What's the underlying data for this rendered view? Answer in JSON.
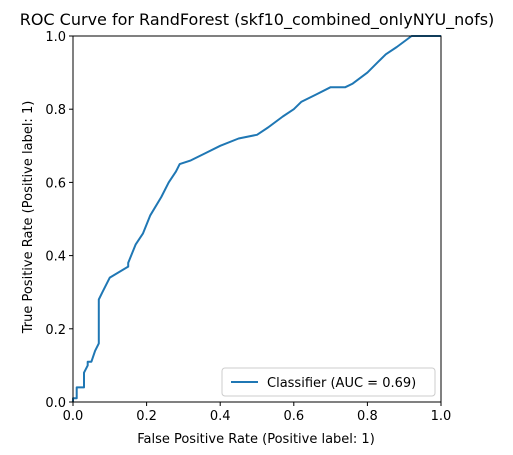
{
  "chart_data": {
    "type": "line",
    "title": "ROC Curve for RandForest (skf10_combined_onlyNYU_nofs)",
    "xlabel": "False Positive Rate (Positive label: 1)",
    "ylabel": "True Positive Rate (Positive label: 1)",
    "xlim": [
      0,
      1
    ],
    "ylim": [
      0,
      1
    ],
    "xticks": [
      "0.0",
      "0.2",
      "0.4",
      "0.6",
      "0.8",
      "1.0"
    ],
    "yticks": [
      "0.0",
      "0.2",
      "0.4",
      "0.6",
      "0.8",
      "1.0"
    ],
    "grid": false,
    "legend_position": "lower-right",
    "series": [
      {
        "name": "Classifier (AUC = 0.69)",
        "color": "#1f77b4",
        "x": [
          0.0,
          0.0,
          0.01,
          0.01,
          0.02,
          0.02,
          0.03,
          0.03,
          0.04,
          0.04,
          0.05,
          0.06,
          0.07,
          0.07,
          0.08,
          0.1,
          0.15,
          0.15,
          0.17,
          0.19,
          0.21,
          0.24,
          0.26,
          0.28,
          0.29,
          0.32,
          0.36,
          0.4,
          0.45,
          0.5,
          0.53,
          0.57,
          0.6,
          0.62,
          0.66,
          0.7,
          0.74,
          0.76,
          0.8,
          0.83,
          0.85,
          0.88,
          0.92,
          1.0
        ],
        "y": [
          0.0,
          0.01,
          0.01,
          0.04,
          0.04,
          0.04,
          0.04,
          0.08,
          0.1,
          0.11,
          0.11,
          0.14,
          0.16,
          0.28,
          0.3,
          0.34,
          0.37,
          0.38,
          0.43,
          0.46,
          0.51,
          0.56,
          0.6,
          0.63,
          0.65,
          0.66,
          0.68,
          0.7,
          0.72,
          0.73,
          0.75,
          0.78,
          0.8,
          0.82,
          0.84,
          0.86,
          0.86,
          0.87,
          0.9,
          0.93,
          0.95,
          0.97,
          1.0,
          1.0
        ]
      }
    ]
  }
}
